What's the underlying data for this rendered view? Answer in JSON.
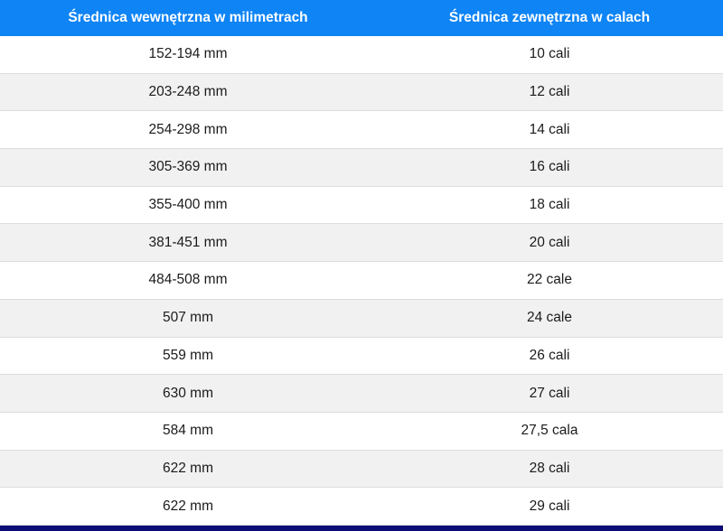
{
  "chart_data": {
    "type": "table",
    "columns": [
      "Średnica wewnętrzna w milimetrach",
      "Średnica zewnętrzna w calach"
    ],
    "rows": [
      [
        "152-194 mm",
        "10 cali"
      ],
      [
        "203-248 mm",
        "12 cali"
      ],
      [
        "254-298 mm",
        "14 cali"
      ],
      [
        "305-369 mm",
        "16 cali"
      ],
      [
        "355-400 mm",
        "18 cali"
      ],
      [
        "381-451 mm",
        "20 cali"
      ],
      [
        "484-508 mm",
        "22 cale"
      ],
      [
        "507 mm",
        "24 cale"
      ],
      [
        "559 mm",
        "26 cali"
      ],
      [
        "630 mm",
        "27 cali"
      ],
      [
        "584 mm",
        "27,5 cala"
      ],
      [
        "622 mm",
        "28 cali"
      ],
      [
        "622 mm",
        "29 cali"
      ]
    ],
    "layout": {
      "legend": "none",
      "grid": "horizontal row dividers",
      "zebra_striping": true
    }
  },
  "colors": {
    "header_bg": "#0e84f5",
    "header_text": "#ffffff",
    "row_bg": "#ffffff",
    "row_alt_bg": "#f1f1f1",
    "row_border": "#dcdcdc",
    "bottom_bar": "#0d0d78",
    "cell_text": "#1b1b1b"
  }
}
